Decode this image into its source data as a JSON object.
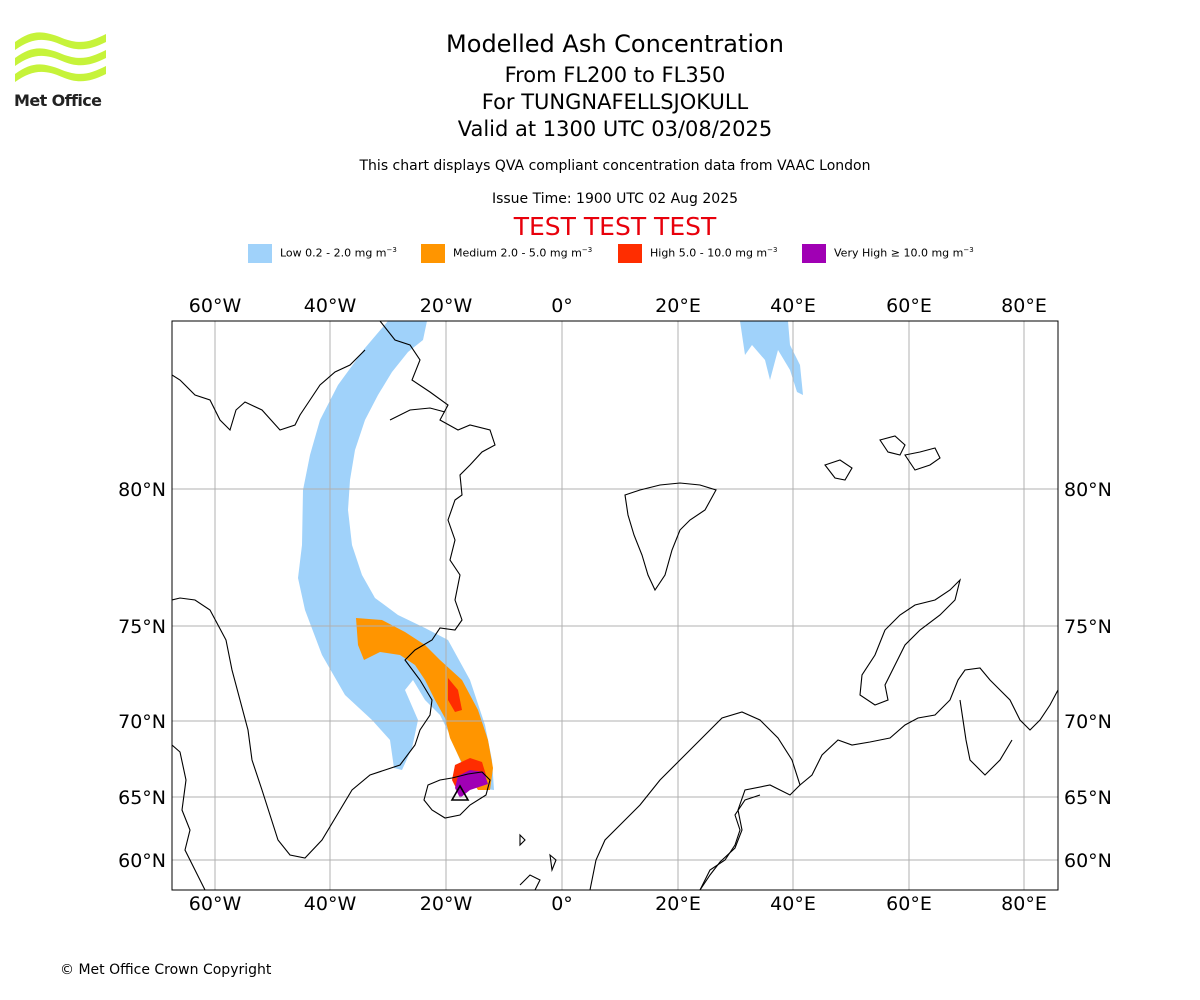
{
  "header": {
    "logo_text": "Met Office",
    "title": "Modelled Ash Concentration",
    "levels": "From FL200 to FL350",
    "volcano": "For TUNGNAFELLSJOKULL",
    "valid": "Valid at 1300 UTC 03/08/2025",
    "subtitle": "This chart displays QVA compliant concentration data from VAAC London",
    "issue_time": "Issue Time: 1900 UTC 02 Aug 2025",
    "test_banner": "TEST TEST TEST"
  },
  "legend": [
    {
      "label": "Low 0.2 - 2.0 mg m",
      "unit_exp": "−3",
      "color": "#a0d2fa"
    },
    {
      "label": "Medium 2.0 - 5.0 mg m",
      "unit_exp": "−3",
      "color": "#ff9500"
    },
    {
      "label": "High 5.0 - 10.0 mg m",
      "unit_exp": "−3",
      "color": "#ff2d00"
    },
    {
      "label": "Very High ≥ 10.0 mg m",
      "unit_exp": "−3",
      "color": "#a000b4"
    }
  ],
  "map": {
    "lon_labels": [
      "60°W",
      "40°W",
      "20°W",
      "0°",
      "20°E",
      "40°E",
      "60°E",
      "80°E"
    ],
    "lat_labels": [
      "80°N",
      "75°N",
      "70°N",
      "65°N",
      "60°N"
    ],
    "gridlines": true,
    "volcano_marker": "triangle-icon"
  },
  "footer": {
    "copyright": "© Met Office Crown Copyright"
  }
}
